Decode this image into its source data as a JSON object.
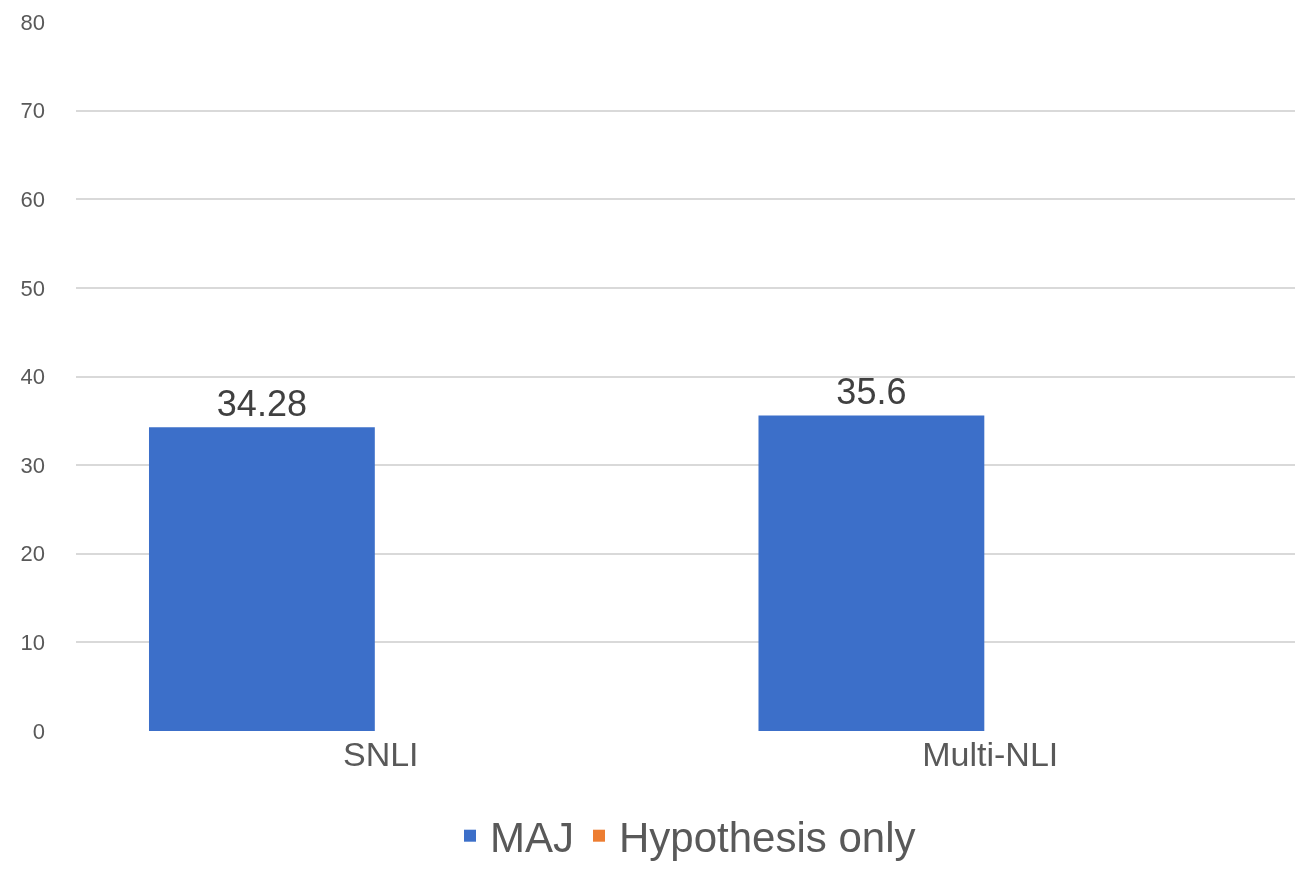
{
  "chart_data": {
    "type": "bar",
    "categories": [
      "SNLI",
      "Multi-NLI"
    ],
    "series": [
      {
        "name": "MAJ",
        "color": "#3c6fc9",
        "values": [
          34.28,
          35.6
        ],
        "value_labels": [
          "34.28",
          "35.6"
        ]
      },
      {
        "name": "Hypothesis only",
        "color": "#ed7d31",
        "values": [
          null,
          null
        ]
      }
    ],
    "ylim": [
      0,
      80
    ],
    "yticks": [
      0,
      10,
      20,
      30,
      40,
      50,
      60,
      70,
      80
    ],
    "grid": "y",
    "legend": "bottom"
  }
}
